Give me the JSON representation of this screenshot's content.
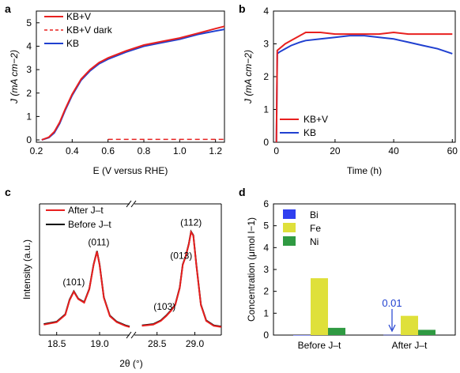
{
  "chart_data": [
    {
      "panel": "a",
      "type": "line",
      "xlabel": "E (V versus RHE)",
      "ylabel": "J (mA cm−2)",
      "xlim": [
        0.2,
        1.25
      ],
      "ylim": [
        -0.1,
        5.5
      ],
      "xticks": [
        "0.2",
        "0.4",
        "0.6",
        "0.8",
        "1.0",
        "1.2"
      ],
      "yticks": [
        "0",
        "1",
        "2",
        "3",
        "4",
        "5"
      ],
      "legend_position": "top-left",
      "series": [
        {
          "name": "KB+V",
          "color": "#e8201f",
          "style": "solid",
          "x": [
            0.23,
            0.27,
            0.3,
            0.33,
            0.36,
            0.4,
            0.45,
            0.5,
            0.55,
            0.6,
            0.7,
            0.8,
            0.9,
            1.0,
            1.1,
            1.2,
            1.25
          ],
          "y": [
            0.0,
            0.12,
            0.35,
            0.75,
            1.3,
            1.95,
            2.6,
            3.0,
            3.3,
            3.5,
            3.8,
            4.05,
            4.2,
            4.35,
            4.55,
            4.75,
            4.85
          ]
        },
        {
          "name": "KB+V dark",
          "color": "#e8201f",
          "style": "dashed",
          "x": [
            0.6,
            1.25
          ],
          "y": [
            0.02,
            0.02
          ]
        },
        {
          "name": "KB",
          "color": "#2040d0",
          "style": "solid",
          "x": [
            0.23,
            0.27,
            0.3,
            0.33,
            0.36,
            0.4,
            0.45,
            0.5,
            0.55,
            0.6,
            0.7,
            0.8,
            0.9,
            1.0,
            1.1,
            1.2,
            1.25
          ],
          "y": [
            0.0,
            0.1,
            0.3,
            0.7,
            1.25,
            1.9,
            2.55,
            2.95,
            3.25,
            3.45,
            3.75,
            4.0,
            4.15,
            4.3,
            4.5,
            4.65,
            4.72
          ]
        }
      ]
    },
    {
      "panel": "b",
      "type": "line",
      "xlabel": "Time (h)",
      "ylabel": "J (mA cm−2)",
      "xlim": [
        -1,
        61
      ],
      "ylim": [
        0,
        4
      ],
      "xticks": [
        "0",
        "20",
        "40",
        "60"
      ],
      "yticks": [
        "0",
        "1",
        "2",
        "3",
        "4"
      ],
      "legend_position": "bottom-left",
      "series": [
        {
          "name": "KB+V",
          "color": "#e8201f",
          "x": [
            0,
            0.3,
            1,
            3,
            5,
            8,
            10,
            15,
            20,
            25,
            30,
            35,
            40,
            45,
            50,
            55,
            60
          ],
          "y": [
            0,
            2.8,
            2.85,
            3.0,
            3.1,
            3.25,
            3.35,
            3.35,
            3.3,
            3.3,
            3.3,
            3.3,
            3.35,
            3.3,
            3.3,
            3.3,
            3.3
          ]
        },
        {
          "name": "KB",
          "color": "#2040d0",
          "x": [
            0,
            0.3,
            1,
            3,
            5,
            8,
            10,
            15,
            20,
            25,
            30,
            35,
            40,
            45,
            50,
            55,
            60
          ],
          "y": [
            0,
            2.7,
            2.75,
            2.85,
            2.95,
            3.05,
            3.1,
            3.15,
            3.2,
            3.25,
            3.25,
            3.2,
            3.15,
            3.05,
            2.95,
            2.85,
            2.7
          ]
        }
      ]
    },
    {
      "panel": "c",
      "type": "line",
      "xlabel": "2θ (°)",
      "ylabel": "Intensity (a.u.)",
      "xticks_left": [
        "18.5",
        "19.0"
      ],
      "xticks_right": [
        "28.5",
        "29.0"
      ],
      "legend_position": "top-left",
      "peak_labels": [
        "(101)",
        "(011)",
        "(103)",
        "(013)",
        "(112)"
      ],
      "series": [
        {
          "name": "After J–t",
          "color": "#e8201f"
        },
        {
          "name": "Before J–t",
          "color": "#000000"
        }
      ],
      "segment_left": {
        "x": [
          18.35,
          18.5,
          18.6,
          18.65,
          18.7,
          18.75,
          18.82,
          18.88,
          18.93,
          18.97,
          19.0,
          19.05,
          19.12,
          19.2,
          19.3,
          19.35
        ],
        "y": [
          0.06,
          0.08,
          0.14,
          0.26,
          0.33,
          0.27,
          0.24,
          0.35,
          0.55,
          0.66,
          0.55,
          0.28,
          0.13,
          0.08,
          0.05,
          0.04
        ]
      },
      "segment_right": {
        "x": [
          28.3,
          28.45,
          28.55,
          28.62,
          28.68,
          28.74,
          28.8,
          28.84,
          28.88,
          28.92,
          28.95,
          28.98,
          29.02,
          29.08,
          29.15,
          29.25,
          29.35
        ],
        "y": [
          0.05,
          0.06,
          0.09,
          0.13,
          0.17,
          0.22,
          0.36,
          0.55,
          0.62,
          0.72,
          0.82,
          0.79,
          0.55,
          0.22,
          0.09,
          0.05,
          0.04
        ]
      }
    },
    {
      "panel": "d",
      "type": "bar",
      "ylabel": "Concentration (μmol l−1)",
      "ylim": [
        0,
        6
      ],
      "yticks": [
        "0",
        "1",
        "2",
        "3",
        "4",
        "5",
        "6"
      ],
      "categories": [
        "Before J–t",
        "After J–t"
      ],
      "legend_position": "top-left",
      "annotation": "0.01",
      "series": [
        {
          "name": "Bi",
          "color": "#2f3ff0",
          "values": [
            0,
            0.01
          ]
        },
        {
          "name": "Fe",
          "color": "#dfe03a",
          "values": [
            2.6,
            0.88
          ]
        },
        {
          "name": "Ni",
          "color": "#2f9a42",
          "values": [
            0.33,
            0.24
          ]
        }
      ]
    }
  ],
  "panel_labels": [
    "a",
    "b",
    "c",
    "d"
  ]
}
